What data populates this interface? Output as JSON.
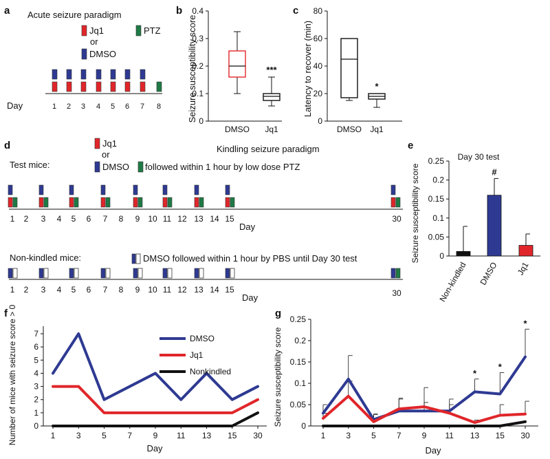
{
  "colors": {
    "dmso": "#2e3a92",
    "jq1": "#e0262a",
    "ptz": "#1f7a45",
    "nonkindled": "#111111",
    "pbs": "#ffffff"
  },
  "panels": [
    "a",
    "b",
    "c",
    "d",
    "e",
    "f",
    "g"
  ],
  "panel_a": {
    "title": "Acute seizure paradigm",
    "jq1_label": "Jq1",
    "or_label": "or",
    "dmso_label": "DMSO",
    "ptz_label": "PTZ",
    "day_label": "Day",
    "days": [
      "1",
      "2",
      "3",
      "4",
      "5",
      "6",
      "7",
      "8"
    ]
  },
  "panel_d": {
    "title": "Kindling seizure paradigm",
    "jq1_label": "Jq1",
    "or_label": "or",
    "dmso_label": "DMSO",
    "followed_label": "followed within 1 hour by low dose PTZ",
    "test_mice_label": "Test mice:",
    "nonkindled_label": "Non-kindled mice:",
    "nonkindled_legend": "DMSO followed within 1 hour by PBS until Day 30 test",
    "day_label": "Day",
    "days": [
      "1",
      "2",
      "3",
      "4",
      "5",
      "6",
      "7",
      "8",
      "9",
      "10",
      "11",
      "12",
      "13",
      "14",
      "15"
    ],
    "final_day": "30",
    "injection_days": [
      "1",
      "3",
      "5",
      "7",
      "9",
      "11",
      "13",
      "15"
    ]
  },
  "chart_data": [
    {
      "panel": "b",
      "type": "box",
      "ylabel": "Seizure susceptibility score",
      "yticks": [
        "0",
        "0.1",
        "0.2",
        "0.3",
        "0.4"
      ],
      "ylim": [
        0,
        0.4
      ],
      "categories": [
        "DMSO",
        "Jq1"
      ],
      "boxes": [
        {
          "name": "DMSO",
          "min": 0.1,
          "q1": 0.16,
          "median": 0.2,
          "q3": 0.255,
          "max": 0.325,
          "color": "#e0262a"
        },
        {
          "name": "Jq1",
          "min": 0.055,
          "q1": 0.075,
          "median": 0.09,
          "q3": 0.1,
          "max": 0.16,
          "color": "#111111"
        }
      ],
      "annotations": [
        {
          "category": "Jq1",
          "text": "***"
        }
      ]
    },
    {
      "panel": "c",
      "type": "box",
      "ylabel": "Latency to recover (min)",
      "yticks": [
        "0",
        "20",
        "40",
        "60",
        "80"
      ],
      "ylim": [
        0,
        80
      ],
      "categories": [
        "DMSO",
        "Jq1"
      ],
      "boxes": [
        {
          "name": "DMSO",
          "min": 15,
          "q1": 17,
          "median": 45,
          "q3": 60,
          "max": 60,
          "color": "#111111"
        },
        {
          "name": "Jq1",
          "min": 10,
          "q1": 16,
          "median": 18,
          "q3": 20,
          "max": 20,
          "color": "#111111"
        }
      ],
      "annotations": [
        {
          "category": "Jq1",
          "text": "*"
        }
      ]
    },
    {
      "panel": "e",
      "type": "bar",
      "title": "Day 30 test",
      "ylabel": "Seizure susceptibility score",
      "yticks": [
        "0",
        "0.05",
        "0.1",
        "0.15",
        "0.2",
        "0.25"
      ],
      "ylim": [
        0,
        0.25
      ],
      "categories": [
        "Non-kindled",
        "DMSO",
        "Jq1"
      ],
      "values": [
        0.012,
        0.16,
        0.028
      ],
      "errors": [
        0.066,
        0.044,
        0.03
      ],
      "colors": [
        "#111111",
        "#2e3a92",
        "#e0262a"
      ],
      "annotations": [
        {
          "category": "DMSO",
          "text": "#"
        }
      ]
    },
    {
      "panel": "f",
      "type": "line",
      "xlabel": "Day",
      "ylabel": "Number of mice with seizure score > 0",
      "categories": [
        "1",
        "3",
        "5",
        "7",
        "9",
        "11",
        "13",
        "15",
        "30"
      ],
      "yticks": [
        "0",
        "1",
        "2",
        "3",
        "4",
        "5",
        "6",
        "7"
      ],
      "ylim": [
        0,
        7
      ],
      "series": [
        {
          "name": "DMSO",
          "values": [
            4,
            7,
            2,
            3,
            4,
            2,
            4,
            2,
            3
          ],
          "color": "#2e3a92"
        },
        {
          "name": "Jq1",
          "values": [
            3,
            3,
            1,
            1,
            1,
            1,
            1,
            1,
            2
          ],
          "color": "#e0262a"
        },
        {
          "name": "Nonkindled",
          "values": [
            0,
            0,
            0,
            0,
            0,
            0,
            0,
            0,
            1
          ],
          "color": "#111111"
        }
      ]
    },
    {
      "panel": "g",
      "type": "line",
      "xlabel": "Day",
      "ylabel": "Seizure susceptibility score",
      "categories": [
        "1",
        "3",
        "5",
        "7",
        "9",
        "11",
        "13",
        "15",
        "30"
      ],
      "yticks": [
        "0",
        "0.05",
        "0.1",
        "0.15",
        "0.2",
        "0.25"
      ],
      "ylim": [
        0,
        0.25
      ],
      "series": [
        {
          "name": "DMSO",
          "values": [
            0.03,
            0.11,
            0.015,
            0.035,
            0.035,
            0.035,
            0.08,
            0.075,
            0.162
          ],
          "errors": [
            0.02,
            0.055,
            0.012,
            0.028,
            0.055,
            0.028,
            0.03,
            0.05,
            0.065
          ],
          "color": "#2e3a92"
        },
        {
          "name": "Jq1",
          "values": [
            0.018,
            0.07,
            0.01,
            0.04,
            0.045,
            0.03,
            0.008,
            0.025,
            0.028
          ],
          "errors": [
            0.012,
            0.035,
            0.018,
            0.025,
            0.01,
            0.02,
            0.006,
            0.025,
            0.03
          ],
          "color": "#e0262a"
        },
        {
          "name": "Nonkindled",
          "values": [
            0,
            0,
            0,
            0,
            0,
            0,
            0,
            0,
            0.01
          ],
          "color": "#111111"
        }
      ],
      "annotations": [
        {
          "category": "13",
          "text": "*"
        },
        {
          "category": "15",
          "text": "*"
        },
        {
          "category": "30",
          "text": "*"
        }
      ]
    }
  ]
}
